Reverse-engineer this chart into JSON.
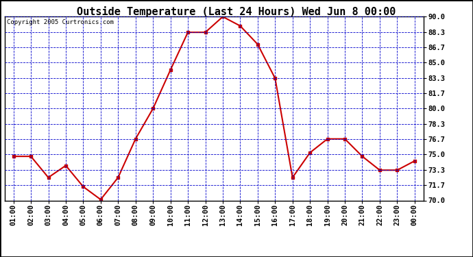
{
  "title": "Outside Temperature (Last 24 Hours) Wed Jun 8 00:00",
  "copyright": "Copyright 2005 Curtronics.com",
  "x_labels": [
    "01:00",
    "02:00",
    "03:00",
    "04:00",
    "05:00",
    "06:00",
    "07:00",
    "08:00",
    "09:00",
    "10:00",
    "11:00",
    "12:00",
    "13:00",
    "14:00",
    "15:00",
    "16:00",
    "17:00",
    "18:00",
    "19:00",
    "20:00",
    "21:00",
    "22:00",
    "23:00",
    "00:00"
  ],
  "y_values": [
    74.8,
    74.8,
    72.5,
    73.8,
    71.5,
    70.1,
    72.5,
    76.7,
    80.0,
    84.2,
    88.3,
    88.3,
    90.0,
    89.0,
    87.0,
    83.3,
    72.5,
    75.2,
    76.7,
    76.7,
    74.8,
    73.3,
    73.3,
    74.3
  ],
  "line_color": "#cc0000",
  "marker_color": "#cc0000",
  "bg_color": "#ffffff",
  "plot_bg_color": "#ffffff",
  "grid_color": "#0000cc",
  "axis_color": "#000000",
  "title_color": "#000000",
  "copyright_color": "#000000",
  "ylim": [
    70.0,
    90.0
  ],
  "yticks": [
    70.0,
    71.7,
    73.3,
    75.0,
    76.7,
    78.3,
    80.0,
    81.7,
    83.3,
    85.0,
    86.7,
    88.3,
    90.0
  ],
  "title_fontsize": 11,
  "copyright_fontsize": 6.5,
  "tick_fontsize": 7.5,
  "outer_border_color": "#000000"
}
